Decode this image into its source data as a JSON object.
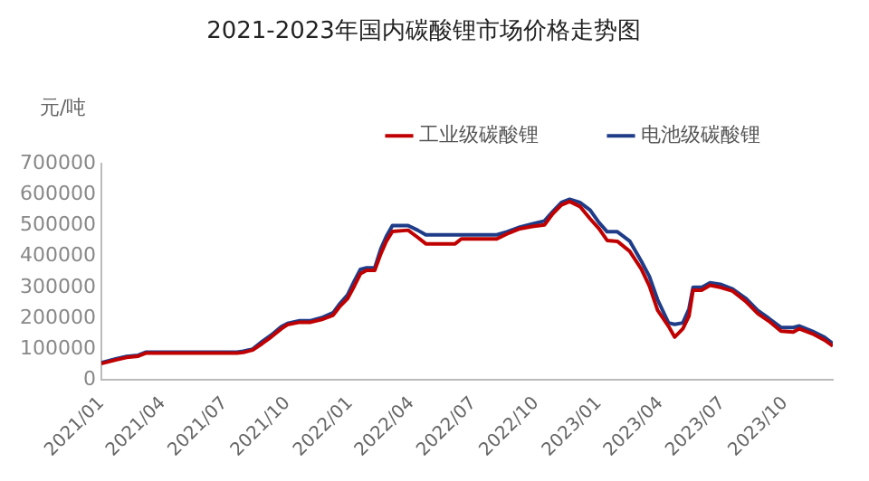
{
  "chart_data": {
    "type": "line",
    "title": "2021-2023年国内碳酸锂市场价格走势图",
    "ylabel": "元/吨",
    "x": [
      "2021-01-01",
      "2021-01-22",
      "2021-02-07",
      "2021-02-24",
      "2021-03-07",
      "2021-07-19",
      "2021-07-28",
      "2021-08-11",
      "2021-08-25",
      "2021-09-07",
      "2021-09-22",
      "2021-10-01",
      "2021-10-19",
      "2021-11-04",
      "2021-11-22",
      "2021-12-07",
      "2021-12-16",
      "2021-12-28",
      "2022-01-07",
      "2022-01-16",
      "2022-01-25",
      "2022-02-06",
      "2022-02-15",
      "2022-02-23",
      "2022-03-04",
      "2022-03-27",
      "2022-04-10",
      "2022-04-22",
      "2022-05-03",
      "2022-06-04",
      "2022-06-13",
      "2022-08-04",
      "2022-08-19",
      "2022-09-07",
      "2022-09-25",
      "2022-10-13",
      "2022-10-25",
      "2022-11-07",
      "2022-11-19",
      "2022-12-04",
      "2022-12-19",
      "2023-01-01",
      "2023-01-13",
      "2023-01-28",
      "2023-02-15",
      "2023-03-04",
      "2023-03-16",
      "2023-03-28",
      "2023-04-13",
      "2023-04-22",
      "2023-05-04",
      "2023-05-13",
      "2023-05-19",
      "2023-06-01",
      "2023-06-13",
      "2023-06-28",
      "2023-07-16",
      "2023-08-04",
      "2023-08-22",
      "2023-09-07",
      "2023-09-25",
      "2023-10-13",
      "2023-10-22",
      "2023-11-10",
      "2023-11-28",
      "2023-12-10"
    ],
    "series": [
      {
        "name": "工业级碳酸锂",
        "color": "#c00000",
        "values": [
          53000,
          65000,
          73000,
          77000,
          87000,
          87000,
          89000,
          97000,
          118000,
          139000,
          166000,
          179000,
          187000,
          187000,
          197000,
          210000,
          236000,
          263000,
          304000,
          344000,
          355000,
          355000,
          409000,
          449000,
          481000,
          485000,
          462000,
          441000,
          441000,
          441000,
          457000,
          457000,
          473000,
          490000,
          497000,
          502000,
          538000,
          567000,
          578000,
          562000,
          522000,
          490000,
          452000,
          449000,
          417000,
          360000,
          304000,
          226000,
          174000,
          139000,
          166000,
          207000,
          291000,
          291000,
          307000,
          300000,
          288000,
          255000,
          215000,
          191000,
          158000,
          155000,
          166000,
          150000,
          129000,
          110000
        ]
      },
      {
        "name": "电池级碳酸锂",
        "color": "#1f3c88",
        "values": [
          56000,
          68000,
          76000,
          80000,
          90000,
          90000,
          93000,
          100000,
          125000,
          145000,
          173000,
          183000,
          192000,
          192000,
          203000,
          218000,
          245000,
          275000,
          320000,
          358000,
          363000,
          363000,
          425000,
          465000,
          500000,
          500000,
          485000,
          470000,
          470000,
          470000,
          470000,
          470000,
          480000,
          495000,
          505000,
          515000,
          545000,
          575000,
          585000,
          575000,
          550000,
          510000,
          480000,
          480000,
          450000,
          385000,
          335000,
          260000,
          185000,
          180000,
          185000,
          230000,
          300000,
          300000,
          315000,
          310000,
          295000,
          265000,
          225000,
          200000,
          170000,
          170000,
          175000,
          158000,
          138000,
          118000
        ]
      }
    ],
    "xlim": [
      "2021-01-01",
      "2023-12-10"
    ],
    "xticks": [
      {
        "value": "2021-01-01",
        "label": "2021/01"
      },
      {
        "value": "2021-04-01",
        "label": "2021/04"
      },
      {
        "value": "2021-07-01",
        "label": "2021/07"
      },
      {
        "value": "2021-10-01",
        "label": "2021/10"
      },
      {
        "value": "2022-01-01",
        "label": "2022/01"
      },
      {
        "value": "2022-04-01",
        "label": "2022/04"
      },
      {
        "value": "2022-07-01",
        "label": "2022/07"
      },
      {
        "value": "2022-10-01",
        "label": "2022/10"
      },
      {
        "value": "2023-01-01",
        "label": "2023/01"
      },
      {
        "value": "2023-04-01",
        "label": "2023/04"
      },
      {
        "value": "2023-07-01",
        "label": "2023/07"
      },
      {
        "value": "2023-10-01",
        "label": "2023/10"
      }
    ],
    "ylim": [
      0,
      700000
    ],
    "yticks": [
      0,
      100000,
      200000,
      300000,
      400000,
      500000,
      600000,
      700000
    ],
    "legend": "top",
    "grid": false,
    "marker": "none",
    "line_style": "solid"
  }
}
